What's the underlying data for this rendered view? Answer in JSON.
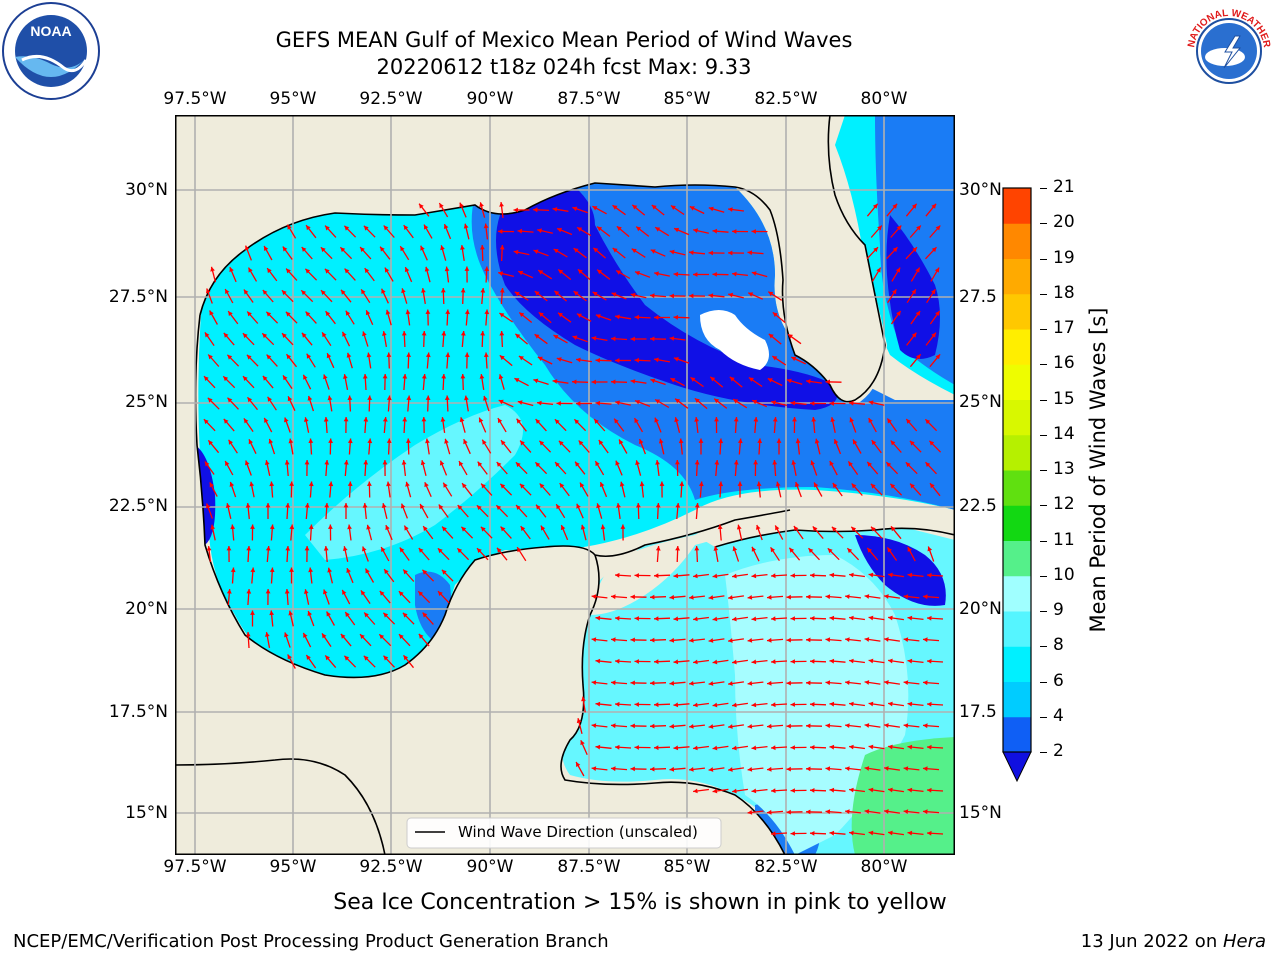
{
  "header": {
    "title_line1": "GEFS MEAN Gulf of Mexico Mean Period of Wind Waves",
    "title_line2": "20220612 t18z 024h fcst   Max: 9.33"
  },
  "logos": {
    "left": {
      "text": "NOAA",
      "ring_text": "NATIONAL OCEANIC AND ATMOSPHERIC ADMINISTRATION · U.S. DEPARTMENT OF COMMERCE"
    },
    "right": {
      "ring_text": "NATIONAL WEATHER SERVICE"
    }
  },
  "axes": {
    "lon_labels": [
      "97.5°W",
      "95°W",
      "92.5°W",
      "90°W",
      "87.5°W",
      "85°W",
      "82.5°W",
      "80°W"
    ],
    "lat_labels_left": [
      "30°N",
      "27.5°N",
      "25°N",
      "22.5°N",
      "20°N",
      "17.5°N",
      "15°N"
    ],
    "lat_labels_right": [
      "30°N",
      "27.5",
      "25°N",
      "22.5",
      "20°N",
      "17.5",
      "15°N"
    ]
  },
  "legend": {
    "label": "Wind Wave Direction (unscaled)"
  },
  "colorbar": {
    "title": "Mean Period of Wind Waves [s]",
    "ticks": [
      "2",
      "4",
      "6",
      "8",
      "9",
      "10",
      "11",
      "12",
      "13",
      "14",
      "15",
      "16",
      "17",
      "18",
      "19",
      "20",
      "21"
    ],
    "colors": [
      "#0f5ff5",
      "#00ccff",
      "#00f0ff",
      "#55f5ff",
      "#a0ffff",
      "#55f08a",
      "#12d812",
      "#60e010",
      "#b6f000",
      "#d8f800",
      "#eefd00",
      "#ffee00",
      "#ffc800",
      "#ffaa00",
      "#ff8800",
      "#ff4400",
      "#ff2200"
    ],
    "extend_color": "#1010e0"
  },
  "colors": {
    "land": "#efecdc",
    "grid": "#b0b0b0",
    "arrow": "#ff0000",
    "coast": "#000000",
    "shade_dark": "#1010e6",
    "shade_mid": "#1a7cf5",
    "shade_cyan": "#00f0ff",
    "shade_light": "#66f7ff",
    "shade_pale": "#a6fdff",
    "shade_green": "#55f08a"
  },
  "caption": "Sea Ice Concentration > 15% is shown in pink to yellow",
  "footer": {
    "left": "NCEP/EMC/Verification Post Processing Product Generation Branch",
    "date": "13 Jun 2022 on ",
    "machine": "Hera"
  }
}
